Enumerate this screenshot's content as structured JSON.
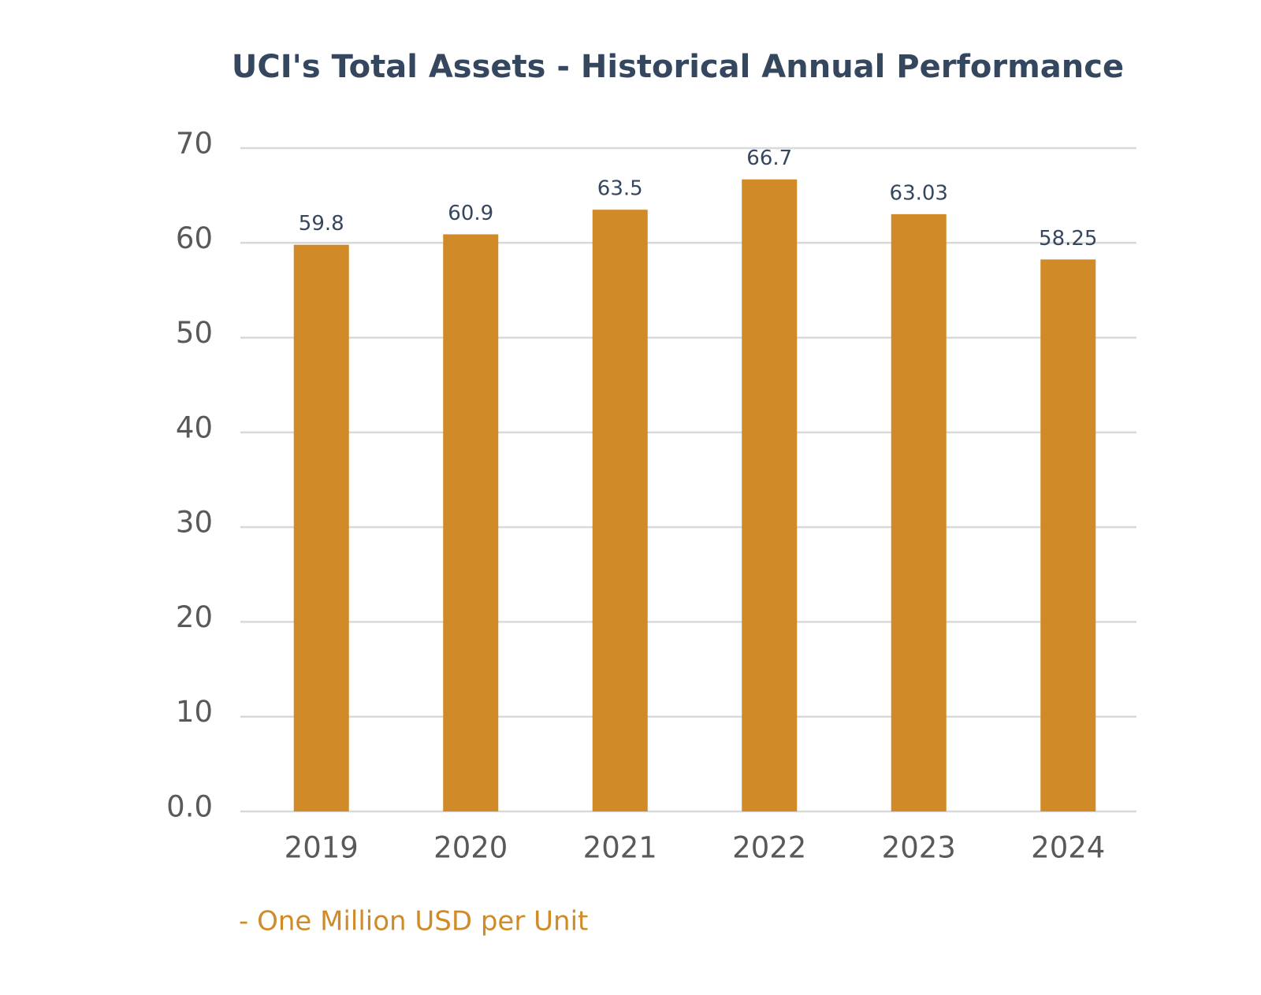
{
  "chart_data": {
    "type": "bar",
    "title": "UCI's Total Assets - Historical Annual Performance",
    "note": "- One Million USD per Unit",
    "categories": [
      "2019",
      "2020",
      "2021",
      "2022",
      "2023",
      "2024"
    ],
    "values": [
      59.8,
      60.9,
      63.5,
      66.7,
      63.03,
      58.25
    ],
    "color": "#d08b28",
    "ylim": [
      0,
      70
    ],
    "yticks": [
      {
        "value": 0,
        "label": "0.0"
      },
      10,
      20,
      30,
      40,
      50,
      60,
      70
    ],
    "grid": true
  }
}
